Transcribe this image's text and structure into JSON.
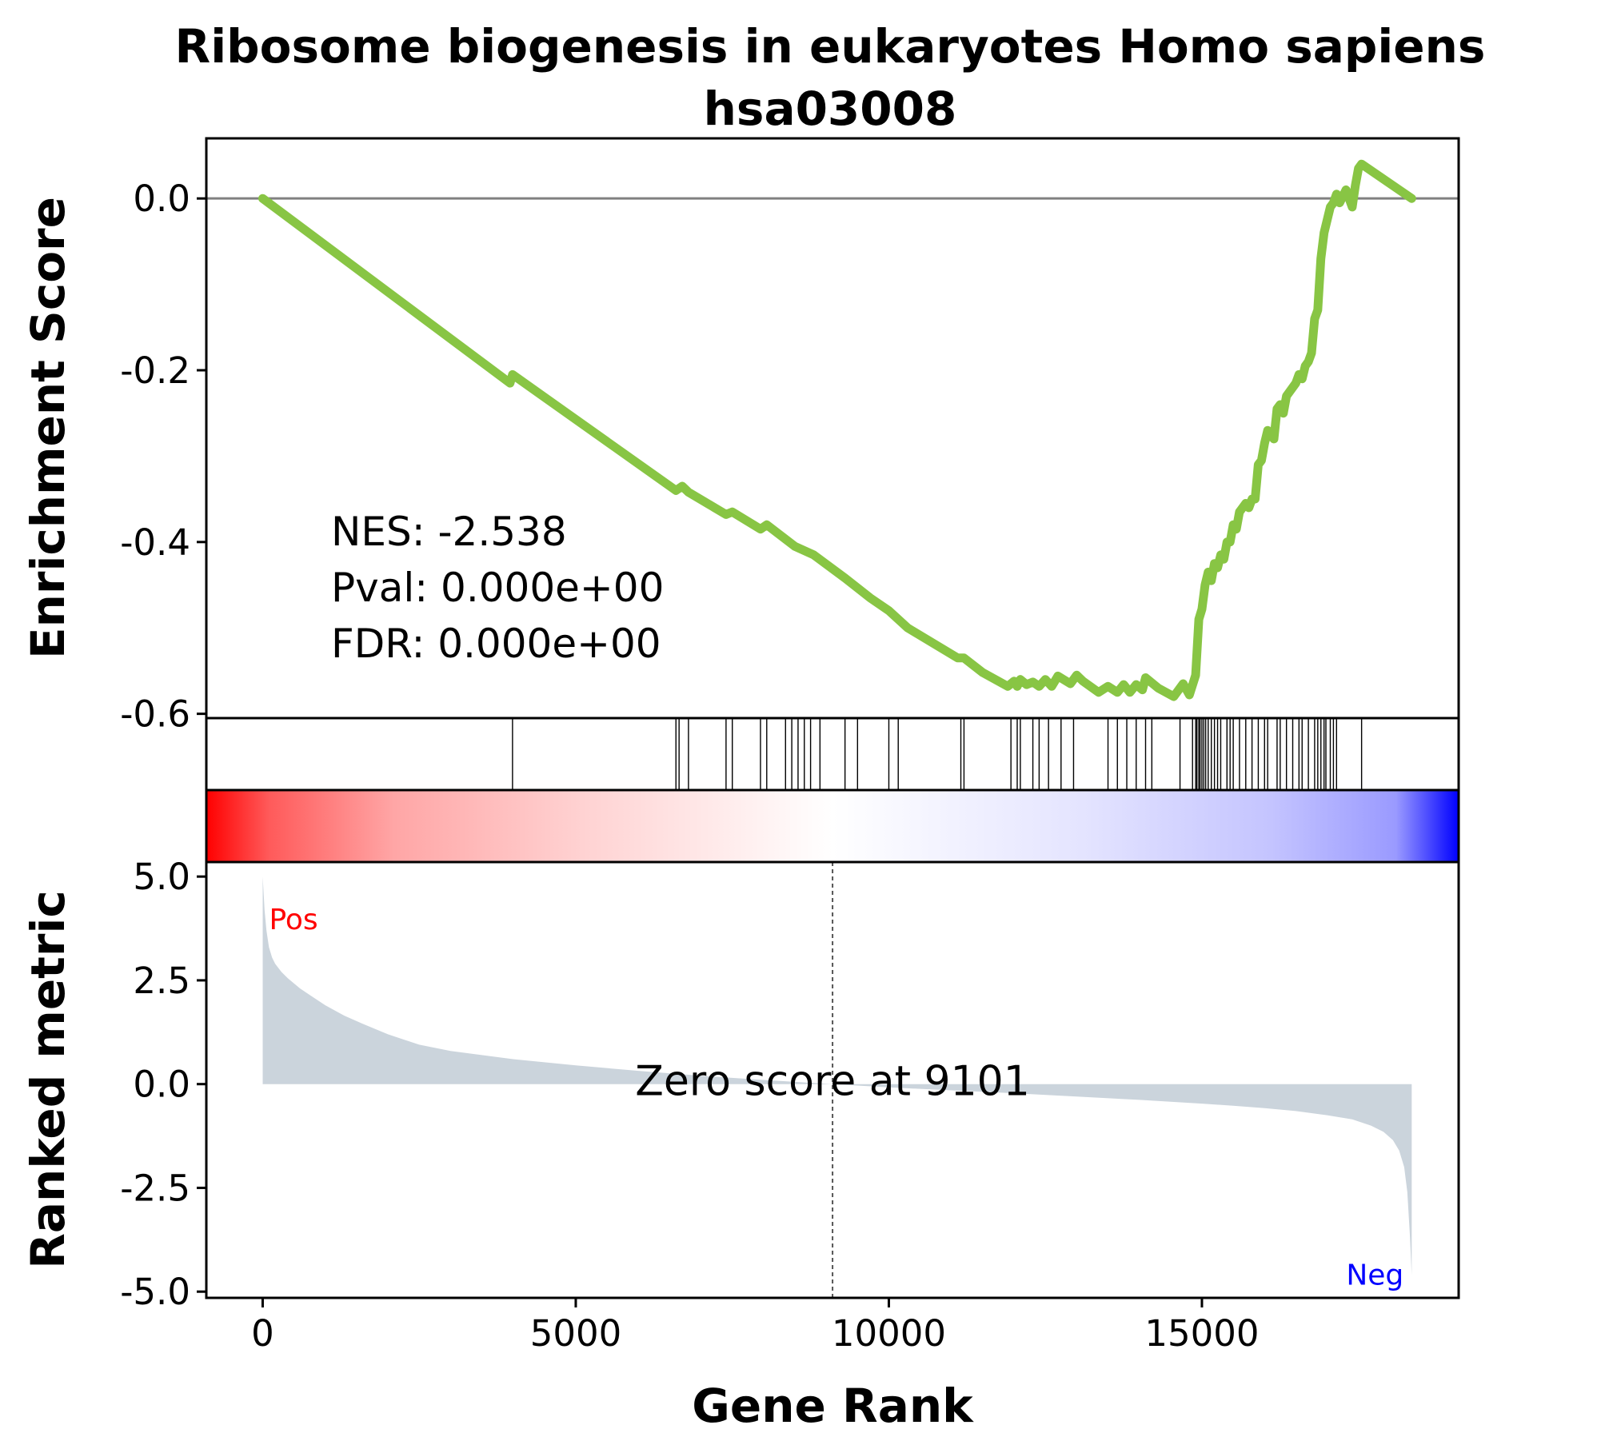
{
  "chart_data": {
    "type": "line",
    "title": "Ribosome biogenesis in eukaryotes Homo sapiens\nhsa03008",
    "title_lines": [
      "Ribosome biogenesis in eukaryotes Homo sapiens",
      "hsa03008"
    ],
    "xlabel": "Gene Rank",
    "xlim": [
      -900,
      19100
    ],
    "xticks": [
      0,
      5000,
      10000,
      15000
    ],
    "xtick_labels": [
      "0",
      "5000",
      "10000",
      "15000"
    ],
    "line_color": "#88c544",
    "es_panel": {
      "ylabel": "Enrichment Score",
      "ylim": [
        -0.605,
        0.07
      ],
      "yticks": [
        0.0,
        -0.2,
        -0.4,
        -0.6
      ],
      "ytick_labels": [
        "0.0",
        "-0.2",
        "-0.4",
        "-0.6"
      ],
      "zero_line": true,
      "series": [
        {
          "x": [
            0,
            3950,
            3990,
            6600,
            6700,
            6800,
            7400,
            7500,
            7950,
            8050,
            8500,
            8800,
            9300,
            9700,
            10000,
            10300,
            11100,
            11200,
            11500,
            11900,
            12000,
            12050,
            12100,
            12200,
            12300,
            12400,
            12500,
            12600,
            12700,
            12900,
            13000,
            13100,
            13350,
            13500,
            13650,
            13750,
            13850,
            13950,
            14050,
            14100,
            14300,
            14550,
            14700,
            14800,
            14900,
            14950,
            15000,
            15050,
            15100,
            15150,
            15200,
            15250,
            15300,
            15350,
            15400,
            15450,
            15500,
            15550,
            15600,
            15700,
            15750,
            15800,
            15850,
            15900,
            15950,
            16000,
            16050,
            16100,
            16150,
            16200,
            16250,
            16300,
            16350,
            16400,
            16450,
            16500,
            16550,
            16600,
            16650,
            16700,
            16750,
            16800,
            16850,
            16900,
            16950,
            17000,
            17050,
            17100,
            17150,
            17200,
            17300,
            17400,
            17450,
            17500,
            17550,
            18350
          ],
          "y": [
            0.0,
            -0.215,
            -0.205,
            -0.34,
            -0.335,
            -0.342,
            -0.368,
            -0.365,
            -0.385,
            -0.38,
            -0.405,
            -0.415,
            -0.442,
            -0.465,
            -0.48,
            -0.5,
            -0.535,
            -0.535,
            -0.552,
            -0.568,
            -0.562,
            -0.568,
            -0.56,
            -0.566,
            -0.563,
            -0.568,
            -0.56,
            -0.568,
            -0.556,
            -0.565,
            -0.555,
            -0.562,
            -0.575,
            -0.568,
            -0.575,
            -0.566,
            -0.575,
            -0.566,
            -0.572,
            -0.558,
            -0.57,
            -0.58,
            -0.565,
            -0.578,
            -0.555,
            -0.49,
            -0.478,
            -0.45,
            -0.435,
            -0.445,
            -0.425,
            -0.43,
            -0.415,
            -0.42,
            -0.4,
            -0.4,
            -0.38,
            -0.385,
            -0.365,
            -0.355,
            -0.36,
            -0.35,
            -0.35,
            -0.31,
            -0.305,
            -0.285,
            -0.27,
            -0.275,
            -0.28,
            -0.245,
            -0.24,
            -0.25,
            -0.23,
            -0.225,
            -0.22,
            -0.215,
            -0.205,
            -0.21,
            -0.195,
            -0.19,
            -0.18,
            -0.14,
            -0.13,
            -0.07,
            -0.04,
            -0.025,
            -0.01,
            -0.005,
            0.005,
            -0.005,
            0.01,
            -0.01,
            0.015,
            0.035,
            0.04,
            0.0
          ]
        }
      ],
      "annotations": [
        "NES: -2.538",
        "Pval: 0.000e+00",
        "FDR: 0.000e+00"
      ]
    },
    "hits": [
      3990,
      6600,
      6650,
      6800,
      7400,
      7500,
      7950,
      8050,
      8350,
      8450,
      8550,
      8650,
      8750,
      8900,
      9300,
      9500,
      10000,
      10150,
      11150,
      11200,
      11950,
      12050,
      12100,
      12300,
      12400,
      12550,
      12750,
      12950,
      13500,
      13650,
      13800,
      13950,
      14100,
      14200,
      14650,
      14850,
      14900,
      14920,
      14950,
      14970,
      15000,
      15030,
      15060,
      15100,
      15150,
      15200,
      15250,
      15300,
      15400,
      15450,
      15500,
      15600,
      15700,
      15800,
      15900,
      16000,
      16050,
      16200,
      16250,
      16350,
      16450,
      16550,
      16600,
      16700,
      16800,
      16850,
      16900,
      16950,
      16980,
      17050,
      17100,
      17150,
      17550
    ],
    "rank_panel": {
      "ylabel": "Ranked metric",
      "ylim": [
        -5.15,
        5.35
      ],
      "yticks": [
        5.0,
        2.5,
        0.0,
        -2.5,
        -5.0
      ],
      "ytick_labels": [
        "5.0",
        "2.5",
        "0.0",
        "-2.5",
        "-5.0"
      ],
      "fill_color": "#cbd4dc",
      "series": [
        {
          "x": [
            0,
            30,
            60,
            100,
            150,
            200,
            300,
            400,
            600,
            800,
            1000,
            1300,
            1600,
            2000,
            2500,
            3000,
            3500,
            4000,
            5000,
            6000,
            7000,
            8000,
            9101,
            10000,
            11000,
            12000,
            13000,
            14000,
            15000,
            15500,
            16000,
            16500,
            17000,
            17400,
            17700,
            17900,
            18050,
            18150,
            18230,
            18280,
            18320,
            18350
          ],
          "y": [
            5.0,
            4.2,
            3.7,
            3.3,
            3.05,
            2.9,
            2.7,
            2.55,
            2.3,
            2.1,
            1.9,
            1.65,
            1.45,
            1.2,
            0.95,
            0.8,
            0.7,
            0.6,
            0.45,
            0.32,
            0.2,
            0.1,
            0.0,
            -0.08,
            -0.15,
            -0.22,
            -0.3,
            -0.38,
            -0.47,
            -0.52,
            -0.58,
            -0.65,
            -0.75,
            -0.85,
            -1.0,
            -1.15,
            -1.35,
            -1.6,
            -2.0,
            -2.6,
            -3.6,
            -4.6
          ]
        }
      ],
      "zero_score_rank": 9101,
      "zero_score_label": "Zero score at 9101",
      "pos_label": "Pos",
      "neg_label": "Neg",
      "pos_color": "#ff0000",
      "neg_color": "#0000ff"
    },
    "colorbar": {
      "from_color": "#ff0000",
      "mid_color": "#ffffff",
      "to_color": "#0000ff"
    }
  }
}
